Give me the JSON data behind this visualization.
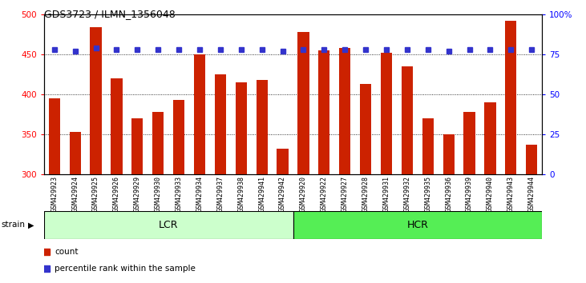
{
  "title": "GDS3723 / ILMN_1356048",
  "categories": [
    "GSM429923",
    "GSM429924",
    "GSM429925",
    "GSM429926",
    "GSM429929",
    "GSM429930",
    "GSM429933",
    "GSM429934",
    "GSM429937",
    "GSM429938",
    "GSM429941",
    "GSM429942",
    "GSM429920",
    "GSM429922",
    "GSM429927",
    "GSM429928",
    "GSM429931",
    "GSM429932",
    "GSM429935",
    "GSM429936",
    "GSM429939",
    "GSM429940",
    "GSM429943",
    "GSM429944"
  ],
  "bar_values": [
    395,
    353,
    484,
    420,
    370,
    378,
    393,
    450,
    425,
    415,
    418,
    332,
    478,
    455,
    458,
    413,
    452,
    435,
    370,
    350,
    378,
    390,
    492,
    337
  ],
  "percentile_values": [
    78,
    77,
    79,
    78,
    78,
    78,
    78,
    78,
    78,
    78,
    78,
    77,
    78,
    78,
    78,
    78,
    78,
    78,
    78,
    77,
    78,
    78,
    78,
    78
  ],
  "bar_color": "#cc2200",
  "dot_color": "#3333cc",
  "ylim_left": [
    300,
    500
  ],
  "ylim_right": [
    0,
    100
  ],
  "yticks_left": [
    300,
    350,
    400,
    450,
    500
  ],
  "yticks_right": [
    0,
    25,
    50,
    75,
    100
  ],
  "yticklabels_right": [
    "0",
    "25",
    "50",
    "75",
    "100%"
  ],
  "grid_values": [
    350,
    400,
    450
  ],
  "group_labels": [
    "LCR",
    "HCR"
  ],
  "group_ranges": [
    [
      0,
      12
    ],
    [
      12,
      24
    ]
  ],
  "group_colors_face": [
    "#ccffcc",
    "#55ee55"
  ],
  "group_colors_edge": [
    "#000000",
    "#000000"
  ],
  "strain_label": "strain",
  "strain_arrow": "▶",
  "legend_items": [
    {
      "color": "#cc2200",
      "label": "count"
    },
    {
      "color": "#3333cc",
      "label": "percentile rank within the sample"
    }
  ],
  "background_color": "#ffffff",
  "plot_bg_color": "#ffffff",
  "bar_width": 0.55,
  "tick_label_bg": "#d8d8d8"
}
